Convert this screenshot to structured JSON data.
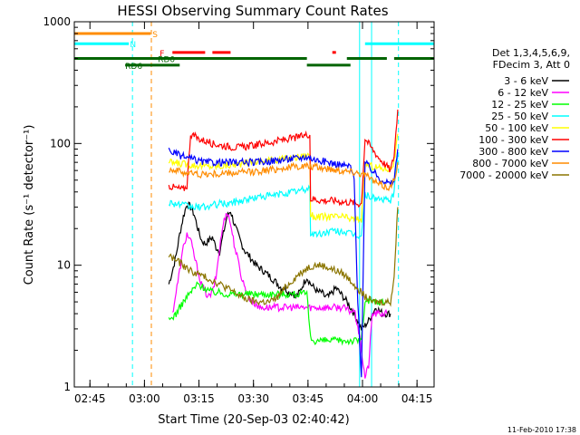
{
  "chart_data": {
    "type": "line",
    "title": "HESSI Observing Summary Count Rates",
    "xlabel": "Start Time (20-Sep-03 02:40:42)",
    "ylabel": "Count Rate (s⁻¹ detector⁻¹)",
    "yscale": "log",
    "ylim": [
      1,
      1000
    ],
    "xlim_minutes": [
      0,
      99
    ],
    "x_ticks": [
      {
        "m": 4.3,
        "label": "02:45"
      },
      {
        "m": 19.3,
        "label": "03:00"
      },
      {
        "m": 34.3,
        "label": "03:15"
      },
      {
        "m": 49.3,
        "label": "03:30"
      },
      {
        "m": 64.3,
        "label": "03:45"
      },
      {
        "m": 79.3,
        "label": "04:00"
      },
      {
        "m": 94.3,
        "label": "04:15"
      }
    ],
    "y_ticks": [
      {
        "v": 1,
        "label": "1"
      },
      {
        "v": 10,
        "label": "10"
      },
      {
        "v": 100,
        "label": "100"
      },
      {
        "v": 1000,
        "label": "1000"
      }
    ],
    "legend": {
      "header": [
        "Det 1,3,4,5,6,9,",
        "FDecim 3, Att 0"
      ],
      "placement": "right"
    },
    "series": [
      {
        "name": "3 - 6 keV",
        "color": "#000000",
        "x": [
          26,
          27,
          28,
          29,
          30,
          31,
          32,
          33,
          34,
          35,
          36,
          37,
          38,
          39,
          40,
          41,
          42,
          43,
          44,
          45,
          46,
          47,
          48,
          49,
          50,
          51,
          52,
          53,
          54,
          55,
          56,
          57,
          58,
          59,
          60,
          61,
          62,
          63,
          64,
          65,
          66,
          67,
          68,
          69,
          70,
          71,
          72,
          73,
          74,
          75,
          76,
          77,
          78,
          79,
          80,
          81,
          82,
          83,
          84,
          85,
          86,
          87
        ],
        "y": [
          7,
          9,
          12,
          18,
          25,
          32,
          30,
          26,
          20,
          16,
          15,
          16,
          17,
          14,
          13,
          18,
          25,
          28,
          22,
          18,
          15,
          13,
          12,
          11,
          10,
          9.5,
          9,
          8.5,
          8,
          7.5,
          7,
          6.5,
          6.5,
          6,
          6,
          5.5,
          6,
          7,
          8,
          7,
          6.5,
          6,
          6,
          5.5,
          5.5,
          6,
          6.5,
          6,
          5.5,
          5,
          4.5,
          4,
          3.5,
          3,
          3.2,
          3.5,
          4,
          4.5,
          4.2,
          4,
          4,
          4
        ]
      },
      {
        "name": "6 - 12 keV",
        "color": "#ff00ff",
        "x": [
          27,
          28,
          29,
          30,
          31,
          32,
          33,
          34,
          35,
          36,
          37,
          38,
          39,
          40,
          41,
          42,
          43,
          44,
          45,
          46,
          47,
          48,
          49,
          50,
          51,
          52,
          53,
          54,
          55,
          56,
          57,
          58,
          59,
          60,
          61,
          62,
          63,
          64,
          65,
          66,
          67,
          68,
          69,
          70,
          71,
          72,
          73,
          74,
          75,
          76,
          77,
          78,
          79,
          80,
          81,
          82,
          83,
          84,
          85,
          86
        ],
        "y": [
          4,
          6,
          9,
          14,
          18,
          16,
          12,
          9,
          7,
          6,
          5.5,
          6,
          8,
          14,
          22,
          28,
          22,
          15,
          11,
          8,
          6.5,
          5.5,
          5,
          4.8,
          4.5,
          4.5,
          4.5,
          4.5,
          4.5,
          4.5,
          4.5,
          4.5,
          4.5,
          4.5,
          4.5,
          4.5,
          4.5,
          4.5,
          4.5,
          4.5,
          4.5,
          4.5,
          4.5,
          4.5,
          4.5,
          4.5,
          4.5,
          4.5,
          4.3,
          4.2,
          4.2,
          3.2,
          2,
          1.2,
          1.5,
          4,
          4,
          4,
          4,
          4
        ]
      },
      {
        "name": "12 - 25 keV",
        "color": "#00ff00",
        "x": [
          26,
          28,
          30,
          32,
          34,
          36,
          38,
          40,
          42,
          44,
          46,
          48,
          50,
          52,
          54,
          56,
          58,
          60,
          62,
          64,
          65,
          66,
          68,
          70,
          72,
          74,
          76,
          78,
          79,
          80,
          82,
          84,
          86
        ],
        "y": [
          3.5,
          4,
          5,
          6,
          7,
          6.5,
          6,
          6,
          5.8,
          5.8,
          5.8,
          5.8,
          5.8,
          5.8,
          5.8,
          5.8,
          5.8,
          5.8,
          5.8,
          5.8,
          2.5,
          2.4,
          2.4,
          2.4,
          2.4,
          2.4,
          2.4,
          2.4,
          2.5,
          5,
          5,
          5,
          5
        ]
      },
      {
        "name": "25 - 50 keV",
        "color": "#00ffff",
        "x": [
          26,
          28,
          30,
          32,
          34,
          36,
          38,
          40,
          42,
          44,
          46,
          48,
          50,
          52,
          54,
          56,
          58,
          60,
          62,
          64,
          64.8,
          65,
          66,
          68,
          70,
          72,
          74,
          76,
          78,
          79,
          80,
          82,
          84,
          86,
          87,
          88,
          89
        ],
        "y": [
          33,
          32,
          31,
          30,
          30,
          30,
          31,
          32,
          32,
          33,
          34,
          35,
          36,
          37,
          37,
          38,
          39,
          40,
          41,
          42,
          43,
          18,
          18,
          18,
          19,
          19,
          19,
          18,
          17.5,
          17.5,
          38,
          36,
          35,
          34,
          34,
          40,
          80
        ]
      },
      {
        "name": "50 - 100 keV",
        "color": "#ffff00",
        "x": [
          26,
          28,
          30,
          32,
          34,
          36,
          38,
          40,
          42,
          44,
          46,
          48,
          50,
          52,
          54,
          56,
          58,
          60,
          62,
          64,
          64.8,
          65,
          66,
          68,
          70,
          72,
          74,
          76,
          78,
          79,
          80,
          82,
          84,
          86,
          87,
          88,
          89
        ],
        "y": [
          70,
          69,
          68,
          67,
          66,
          65,
          65,
          65,
          66,
          67,
          68,
          70,
          71,
          72,
          73,
          74,
          75,
          76,
          78,
          80,
          82,
          26,
          25,
          25,
          25,
          25,
          25,
          24,
          24,
          24,
          68,
          65,
          63,
          62,
          62,
          70,
          120
        ]
      },
      {
        "name": "100 - 300 keV",
        "color": "#ff0000",
        "x": [
          26,
          28,
          30,
          31,
          32,
          34,
          36,
          38,
          40,
          42,
          44,
          46,
          48,
          50,
          52,
          54,
          56,
          58,
          60,
          62,
          64,
          64.8,
          65,
          66,
          68,
          70,
          72,
          74,
          76,
          78,
          79,
          80,
          82,
          84,
          86,
          87,
          88,
          89
        ],
        "y": [
          45,
          43,
          42,
          45,
          120,
          110,
          105,
          100,
          97,
          95,
          93,
          93,
          95,
          97,
          100,
          102,
          105,
          108,
          110,
          113,
          118,
          120,
          35,
          35,
          34,
          34,
          34,
          33,
          33,
          32,
          32,
          110,
          90,
          75,
          65,
          60,
          80,
          190
        ]
      },
      {
        "name": "300 - 800 keV",
        "color": "#0000ff",
        "x": [
          26,
          28,
          30,
          32,
          34,
          36,
          38,
          40,
          42,
          44,
          46,
          48,
          50,
          52,
          54,
          56,
          58,
          60,
          62,
          64,
          66,
          68,
          70,
          72,
          74,
          76,
          77,
          78,
          79,
          80,
          82,
          84,
          86,
          87,
          88,
          89
        ],
        "y": [
          88,
          82,
          78,
          75,
          72,
          70,
          70,
          70,
          70,
          70,
          70,
          70,
          70,
          71,
          72,
          73,
          74,
          75,
          76,
          78,
          74,
          72,
          70,
          68,
          66,
          65,
          50,
          5,
          1.2,
          70,
          60,
          52,
          48,
          46,
          50,
          90
        ]
      },
      {
        "name": "800 - 7000 keV",
        "color": "#ff8c00",
        "x": [
          26,
          28,
          30,
          32,
          34,
          36,
          38,
          40,
          42,
          44,
          46,
          48,
          50,
          52,
          54,
          56,
          58,
          60,
          62,
          64,
          66,
          68,
          70,
          72,
          74,
          76,
          78,
          80,
          82,
          84,
          86,
          87,
          88,
          89
        ],
        "y": [
          62,
          60,
          58,
          57,
          56,
          56,
          56,
          56,
          57,
          57,
          58,
          58,
          59,
          60,
          61,
          62,
          63,
          64,
          65,
          65,
          64,
          63,
          62,
          61,
          60,
          59,
          58,
          55,
          50,
          46,
          44,
          44,
          50,
          70
        ]
      },
      {
        "name": "7000 - 20000 keV",
        "color": "#8b7500",
        "x": [
          26,
          28,
          30,
          32,
          34,
          36,
          38,
          40,
          42,
          44,
          46,
          48,
          50,
          52,
          54,
          56,
          58,
          60,
          62,
          64,
          66,
          68,
          70,
          72,
          74,
          76,
          78,
          80,
          82,
          84,
          86,
          87,
          88,
          89
        ],
        "y": [
          12,
          11,
          10,
          9,
          8.5,
          8,
          7.5,
          7,
          6.5,
          6,
          5.5,
          5.2,
          5,
          5,
          5,
          5.5,
          6.5,
          7.5,
          8.5,
          9.5,
          10,
          10,
          9.5,
          9,
          8.5,
          7.5,
          6.5,
          5.5,
          5,
          5,
          5,
          5,
          8,
          30
        ]
      }
    ],
    "state_bars": [
      {
        "label": "S",
        "color": "#ff8c00",
        "y": 800,
        "segments": [
          [
            0,
            21
          ]
        ],
        "label_at": 21.5
      },
      {
        "label": "N",
        "color": "#00ffff",
        "y": 660,
        "segments": [
          [
            0,
            15
          ],
          [
            80,
            99
          ]
        ],
        "label_at": 15.3
      },
      {
        "label": "F",
        "color": "#ff0000",
        "y": 560,
        "segments": [
          [
            27,
            36
          ],
          [
            38,
            43
          ],
          [
            71,
            72
          ]
        ],
        "label_at": 23.5
      },
      {
        "label": "RD0",
        "color": "#006400",
        "y": 500,
        "segments": [
          [
            0,
            64
          ],
          [
            75,
            86
          ],
          [
            88,
            99
          ]
        ],
        "label_at": 23
      },
      {
        "label": "RD6",
        "color": "#006400",
        "y": 440,
        "segments": [
          [
            14,
            29
          ],
          [
            64,
            76
          ]
        ],
        "label_at": 14
      }
    ],
    "vlines": [
      {
        "m": 16,
        "color": "#00ffff",
        "style": "dashed"
      },
      {
        "m": 21.2,
        "color": "#ff8c00",
        "style": "dashed"
      },
      {
        "m": 78.5,
        "color": "#00ffff",
        "style": "solid"
      },
      {
        "m": 81.8,
        "color": "#00ffff",
        "style": "solid"
      },
      {
        "m": 89.2,
        "color": "#00ffff",
        "style": "dashed"
      }
    ]
  },
  "footer": {
    "timestamp": "11-Feb-2010 17:38"
  }
}
